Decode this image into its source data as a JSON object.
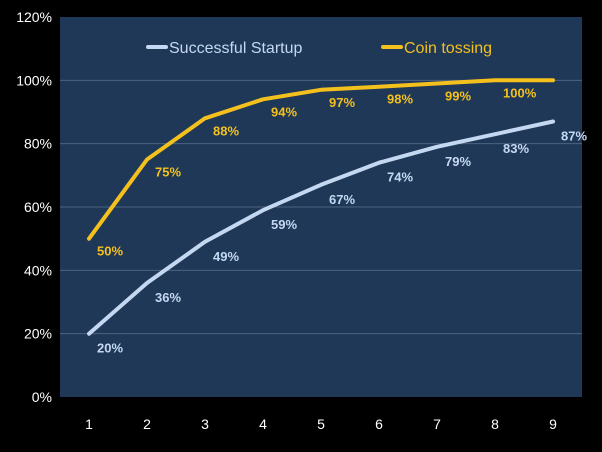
{
  "colors": {
    "page_background": "#000000",
    "plot_background": "#1f3857",
    "gridline": "#4d6480",
    "axis_text": "#ffffff",
    "startup_series": "#c5d8f2",
    "coin_series": "#f3c01e"
  },
  "chart_data": {
    "type": "line",
    "x": [
      1,
      2,
      3,
      4,
      5,
      6,
      7,
      8,
      9
    ],
    "ylim": [
      0,
      120
    ],
    "yticks": [
      0,
      20,
      40,
      60,
      80,
      100,
      120
    ],
    "ytick_labels": [
      "0%",
      "20%",
      "40%",
      "60%",
      "80%",
      "100%",
      "120%"
    ],
    "xtick_labels": [
      "1",
      "2",
      "3",
      "4",
      "5",
      "6",
      "7",
      "8",
      "9"
    ],
    "grid": true,
    "legend_position": "top-center",
    "series": [
      {
        "name": "Successful Startup",
        "color": "#c5d8f2",
        "values": [
          20,
          36,
          49,
          59,
          67,
          74,
          79,
          83,
          87
        ],
        "labels": [
          "20%",
          "36%",
          "49%",
          "59%",
          "67%",
          "74%",
          "79%",
          "83%",
          "87%"
        ]
      },
      {
        "name": "Coin tossing",
        "color": "#f3c01e",
        "values": [
          50,
          75,
          88,
          94,
          97,
          98,
          99,
          100,
          100
        ],
        "labels": [
          "50%",
          "75%",
          "88%",
          "94%",
          "97%",
          "98%",
          "99%",
          "100%",
          ""
        ]
      }
    ]
  }
}
